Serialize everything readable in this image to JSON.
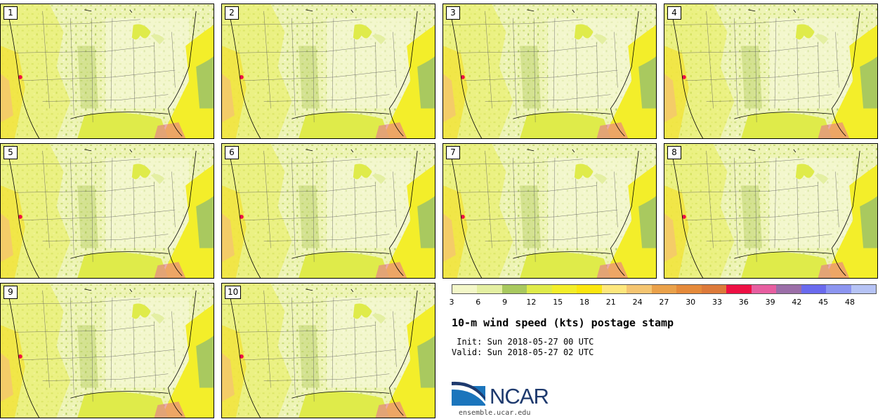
{
  "panels": [
    {
      "label": "1"
    },
    {
      "label": "2"
    },
    {
      "label": "3"
    },
    {
      "label": "4"
    },
    {
      "label": "5"
    },
    {
      "label": "6"
    },
    {
      "label": "7"
    },
    {
      "label": "8"
    },
    {
      "label": "9"
    },
    {
      "label": "10"
    }
  ],
  "colorbar": {
    "colors": [
      "#f3f7c8",
      "#e4efa2",
      "#a9c95f",
      "#dfeb4a",
      "#f3ee2a",
      "#fbe60f",
      "#fde77d",
      "#f5c571",
      "#eaa14a",
      "#e58a3a",
      "#dd7a3a",
      "#ee1044",
      "#e75ea0",
      "#9b6ea8",
      "#6a6aee",
      "#8c95f0",
      "#b6c3f5"
    ],
    "ticks": [
      "3",
      "6",
      "9",
      "12",
      "15",
      "18",
      "21",
      "24",
      "27",
      "30",
      "33",
      "36",
      "39",
      "42",
      "45",
      "48"
    ]
  },
  "title": "10-m wind speed (kts) postage stamp",
  "init": " Init: Sun 2018-05-27 00 UTC",
  "valid": "Valid: Sun 2018-05-27 02 UTC",
  "logo": {
    "text": "NCAR",
    "site": "ensemble.ucar.edu"
  }
}
